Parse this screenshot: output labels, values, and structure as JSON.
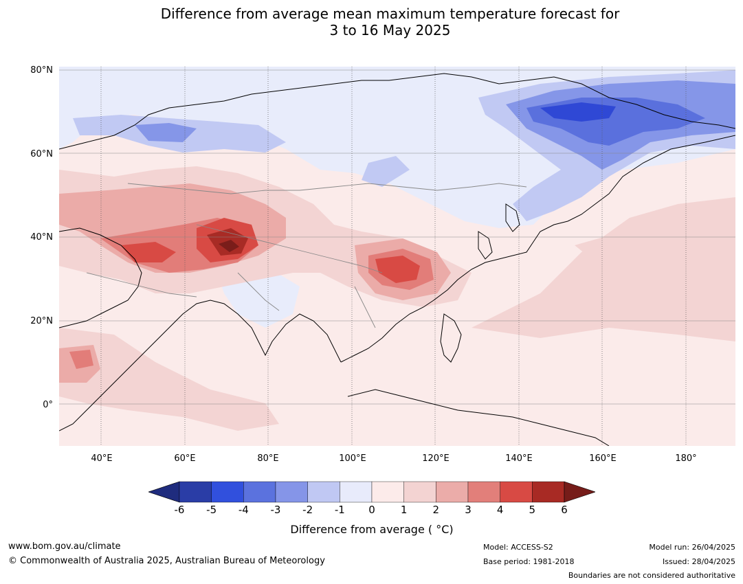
{
  "title": {
    "line1": "Difference from average mean maximum temperature forecast for",
    "line2": "3 to 16 May 2025"
  },
  "map": {
    "lat_labels": [
      "80°N",
      "60°N",
      "40°N",
      "20°N",
      "0°"
    ],
    "lon_labels": [
      "40°E",
      "60°E",
      "80°E",
      "100°E",
      "120°E",
      "140°E",
      "160°E",
      "180°"
    ],
    "colors": {
      "ocean_base": "#fbebea",
      "cold_1": "#e8ecfb",
      "cold_2": "#c1c9f3",
      "cold_3": "#8596e8",
      "cold_4": "#5a70dd",
      "cold_5": "#2f48d5",
      "warm_1": "#f3d4d3",
      "warm_2": "#ebaba8",
      "warm_3": "#e27d79",
      "warm_4": "#d84a44",
      "warm_5": "#a82b25",
      "warm_6": "#7a1d1a"
    }
  },
  "colorbar": {
    "ticks": [
      "-6",
      "-5",
      "-4",
      "-3",
      "-2",
      "-1",
      "0",
      "1",
      "2",
      "3",
      "4",
      "5",
      "6"
    ],
    "colors": [
      "#2a3da6",
      "#3150dd",
      "#5b72de",
      "#8595e8",
      "#c0c8f3",
      "#e8ebfb",
      "#fcebea",
      "#f3d3d2",
      "#ebaca9",
      "#e27f7a",
      "#d84a44",
      "#a82a24"
    ],
    "under_color": "#1f2c7e",
    "over_color": "#761c19",
    "label": "Difference from average ( °C)"
  },
  "footer": {
    "website": "www.bom.gov.au/climate",
    "copyright": "© Commonwealth of Australia 2025, Australian Bureau of Meteorology",
    "model": "Model: ACCESS-S2",
    "base_period": "Base period: 1981-2018",
    "model_run": "Model run: 26/04/2025",
    "issued": "Issued: 28/04/2025",
    "disclaimer": "Boundaries are not considered authoritative"
  }
}
